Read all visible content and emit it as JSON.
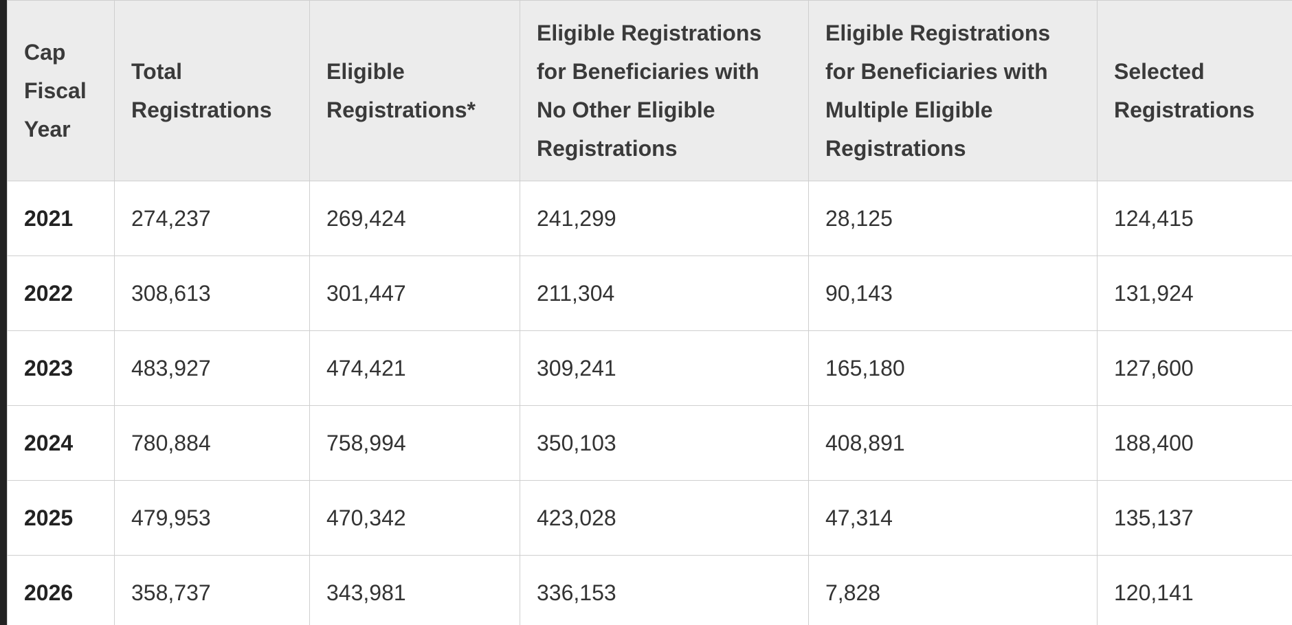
{
  "table": {
    "headers": [
      "Cap Fiscal Year",
      "Total Registrations",
      "Eligible Registrations*",
      "Eligible Registrations for Beneficiaries with No Other Eligible Registrations",
      "Eligible Registrations for Beneficiaries with Multiple Eligible Registrations",
      "Selected Registrations"
    ],
    "rows": [
      [
        "2021",
        "274,237",
        "269,424",
        "241,299",
        "28,125",
        "124,415"
      ],
      [
        "2022",
        "308,613",
        "301,447",
        "211,304",
        "90,143",
        "131,924"
      ],
      [
        "2023",
        "483,927",
        "474,421",
        "309,241",
        "165,180",
        "127,600"
      ],
      [
        "2024",
        "780,884",
        "758,994",
        "350,103",
        "408,891",
        "188,400"
      ],
      [
        "2025",
        "479,953",
        "470,342",
        "423,028",
        "47,314",
        "135,137"
      ],
      [
        "2026",
        "358,737",
        "343,981",
        "336,153",
        "7,828",
        "120,141"
      ]
    ]
  }
}
